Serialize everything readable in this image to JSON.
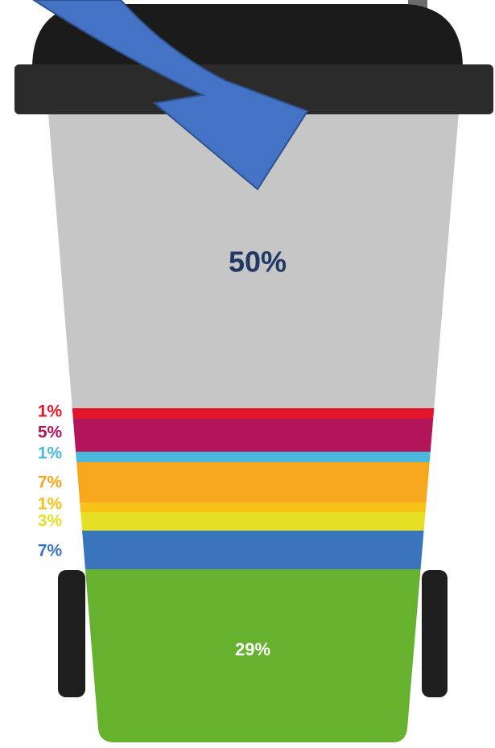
{
  "bin": {
    "main_label": "50%",
    "main_color": "#c6c6c6",
    "main_label_color": "#1f3864",
    "bottom_label": "29%",
    "bottom_color": "#66b22f",
    "bottom_label_color": "#ffffff",
    "segments": [
      {
        "label": "1%",
        "color": "#e3152a"
      },
      {
        "label": "5%",
        "color": "#b3155b"
      },
      {
        "label": "1%",
        "color": "#4ab8dc"
      },
      {
        "label": "7%",
        "color": "#f6a71b"
      },
      {
        "label": "1%",
        "color": "#f8c11a"
      },
      {
        "label": "3%",
        "color": "#e6e024"
      },
      {
        "label": "7%",
        "color": "#3a74bd"
      }
    ]
  }
}
